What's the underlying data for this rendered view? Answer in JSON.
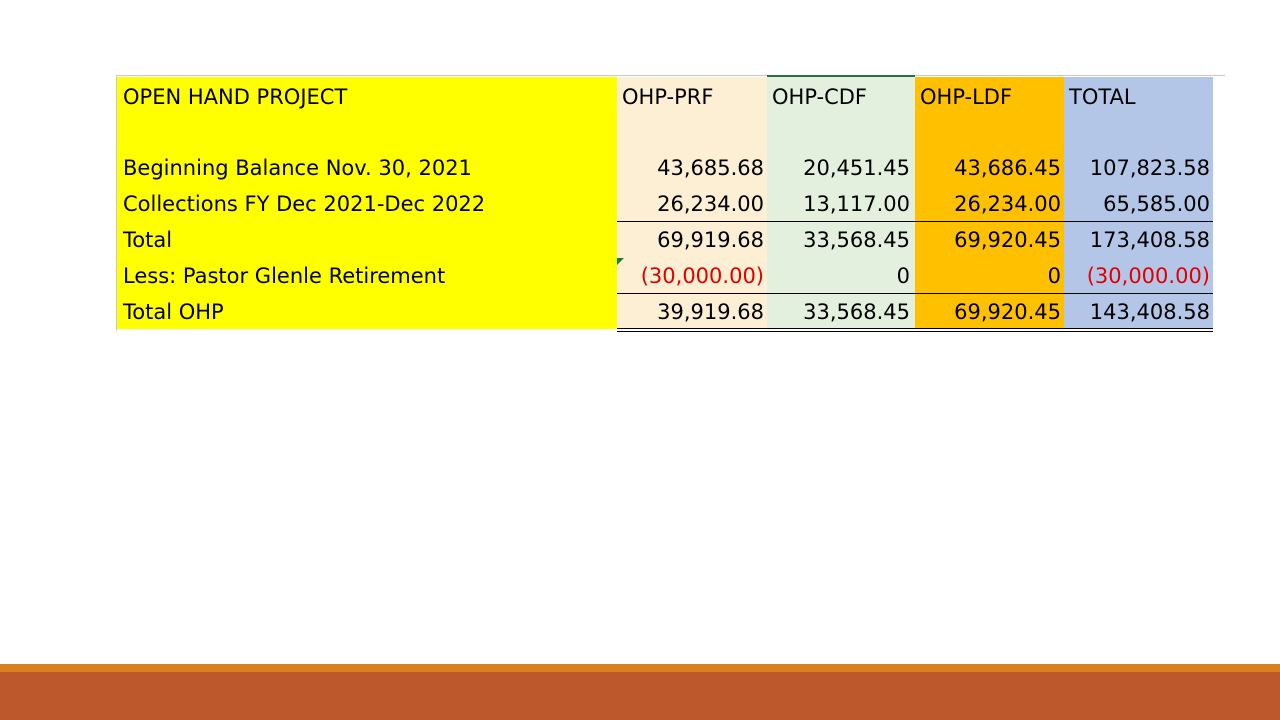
{
  "table": {
    "title": "OPEN HAND PROJECT",
    "columns": [
      "OHP-PRF",
      "OHP-CDF",
      "OHP-LDF",
      "TOTAL"
    ],
    "rows": [
      {
        "label": "Beginning Balance  Nov. 30, 2021",
        "values": [
          "43,685.68",
          "20,451.45",
          "43,686.45",
          "107,823.58"
        ]
      },
      {
        "label": "Collections FY Dec 2021-Dec 2022",
        "values": [
          "26,234.00",
          "13,117.00",
          "26,234.00",
          "65,585.00"
        ]
      },
      {
        "label": "Total",
        "values": [
          "69,919.68",
          "33,568.45",
          "69,920.45",
          "173,408.58"
        ]
      },
      {
        "label": "Less: Pastor Glenle Retirement",
        "values": [
          "(30,000.00)",
          "0",
          "0",
          "(30,000.00)"
        ]
      },
      {
        "label": "Total OHP",
        "values": [
          "39,919.68",
          "33,568.45",
          "69,920.45",
          "143,408.58"
        ]
      }
    ]
  },
  "colors": {
    "label_column": "#ffff00",
    "prf_column": "#fdefd3",
    "cdf_column": "#e3f0de",
    "ldf_column": "#ffc000",
    "total_column": "#b4c6e7",
    "negative_text": "#e00000",
    "footer_thin": "#d9801f",
    "footer": "#bd582c"
  }
}
